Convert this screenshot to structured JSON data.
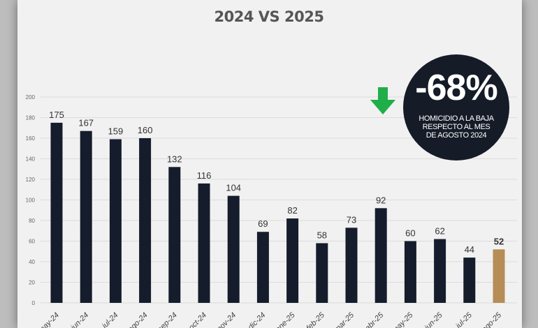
{
  "chart_data": {
    "type": "bar",
    "title": "2024 VS 2025",
    "xlabel": "",
    "ylabel": "",
    "ylim": [
      0,
      200
    ],
    "yticks": [
      0,
      20,
      40,
      60,
      80,
      100,
      120,
      140,
      160,
      180,
      200
    ],
    "grid": true,
    "categories": [
      "may-24",
      "jun-24",
      "jul-24",
      "ago-24",
      "sep-24",
      "oct-24",
      "nov-24",
      "dic-24",
      "ene-25",
      "feb-25",
      "mar-25",
      "abr-25",
      "may-25",
      "jun-25",
      "jul-25",
      "ago-25"
    ],
    "values": [
      175,
      167,
      159,
      160,
      132,
      116,
      104,
      69,
      82,
      58,
      73,
      92,
      60,
      62,
      44,
      52
    ],
    "colors": {
      "default": "#151d2c",
      "highlight": "#b68d57"
    },
    "highlight_index": 15
  },
  "badge": {
    "value": "-68%",
    "lines": [
      "HOMICIDIO A LA BAJA",
      "RESPECTO AL MES",
      "DE AGOSTO 2024"
    ],
    "arrow_color": "#1fae4a",
    "icon": "arrow-down-icon"
  }
}
